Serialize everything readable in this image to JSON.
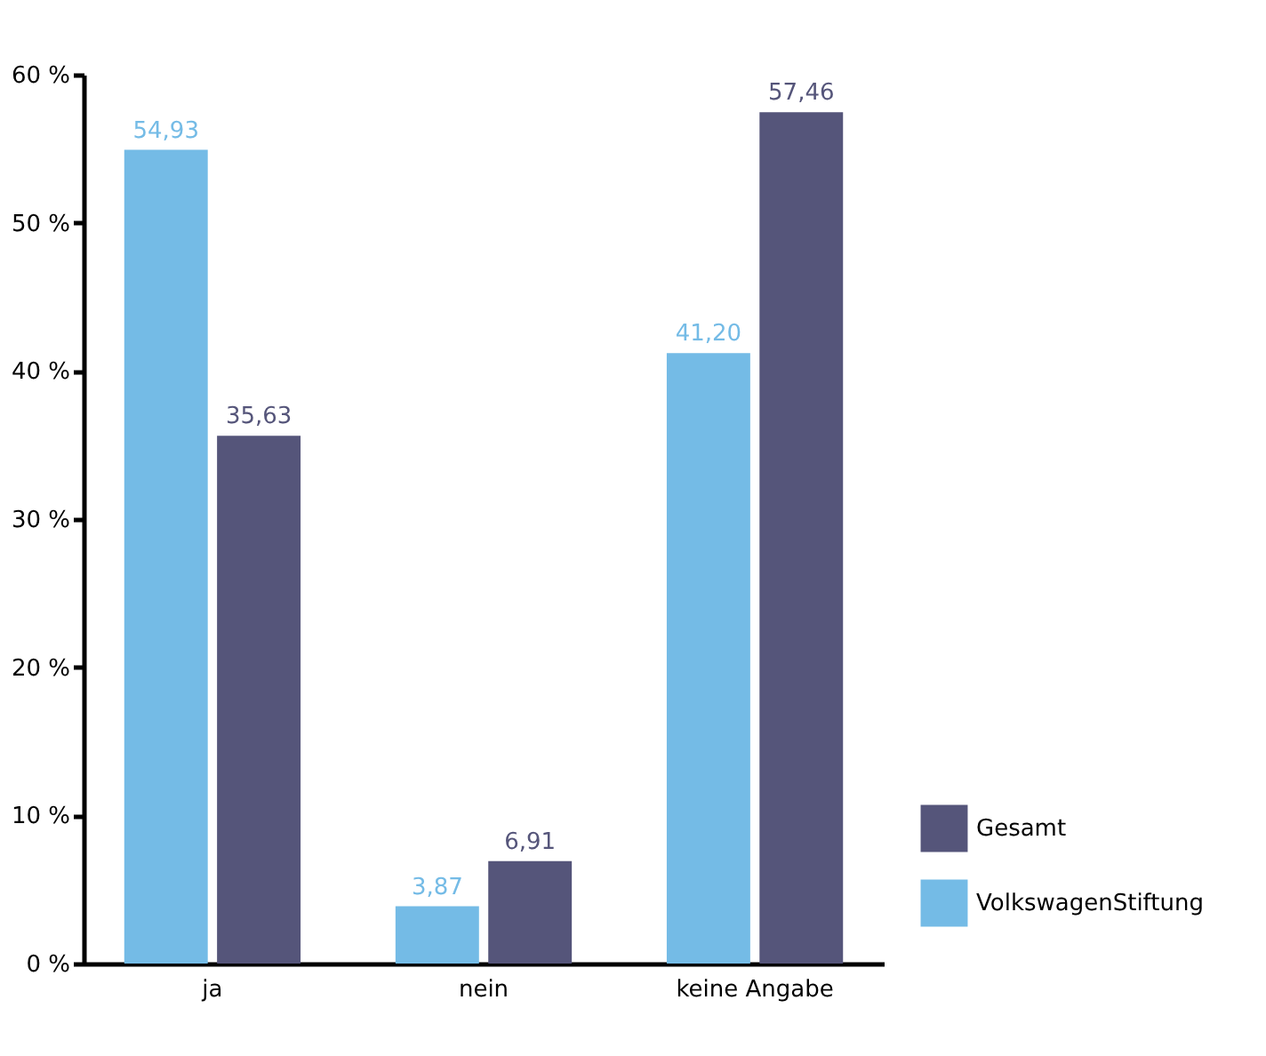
{
  "chart_data": {
    "type": "bar",
    "categories": [
      "ja",
      "nein",
      "keine Angabe"
    ],
    "series": [
      {
        "name": "VolkswagenStiftung",
        "color": "#74bbe6",
        "values": [
          54.93,
          3.87,
          41.2
        ],
        "value_labels": [
          "54,93",
          "3,87",
          "41,20"
        ]
      },
      {
        "name": "Gesamt",
        "color": "#55557a",
        "values": [
          35.63,
          6.91,
          57.46
        ],
        "value_labels": [
          "35,63",
          "6,91",
          "57,46"
        ]
      }
    ],
    "ylim": [
      0,
      60
    ],
    "yticks": [
      {
        "value": 0,
        "label": "0 %"
      },
      {
        "value": 10,
        "label": "10 %"
      },
      {
        "value": 20,
        "label": "20 %"
      },
      {
        "value": 30,
        "label": "30 %"
      },
      {
        "value": 40,
        "label": "40 %"
      },
      {
        "value": 50,
        "label": "50 %"
      },
      {
        "value": 60,
        "label": "60 %"
      }
    ],
    "grid": false,
    "legend": "bottom right"
  }
}
